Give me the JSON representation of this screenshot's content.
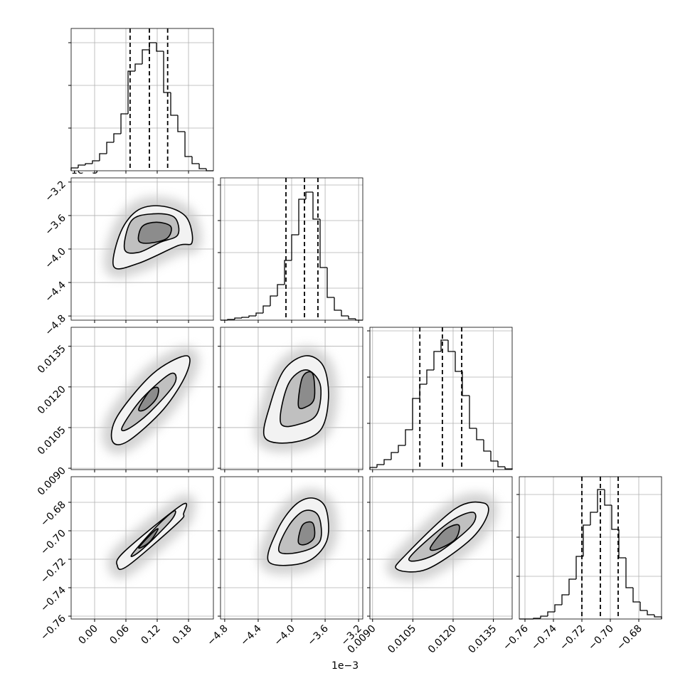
{
  "axes": [
    {
      "xlim": [
        -0.045,
        0.2277
      ],
      "ticks": [
        {
          "value": 0,
          "label": "0.00"
        },
        0.06,
        0.12,
        0.18
      ]
    },
    {
      "xlim": [
        -4.85,
        -3.15
      ],
      "ylim": [
        -4.85,
        -3.15
      ],
      "ticks": [
        {
          "value": -4.8,
          "label": "−4.8"
        },
        {
          "value": -4.4,
          "label": "−4.4"
        },
        {
          "value": -4.0,
          "label": "−4.0"
        },
        {
          "value": -3.6,
          "label": "−3.6"
        },
        {
          "value": -3.2,
          "label": "−3.2"
        }
      ],
      "offset": "1e−3"
    },
    {
      "xlim": [
        0.0089,
        0.0142
      ],
      "ylim": [
        0.00895,
        0.0142
      ],
      "ticks": [
        {
          "value": 0.009,
          "label": "0.0090"
        },
        0.0105,
        {
          "value": 0.012,
          "label": "0.0120"
        },
        0.0135
      ]
    },
    {
      "xlim": [
        -0.764,
        -0.664
      ],
      "ylim": [
        -0.762,
        -0.662
      ],
      "ticks": [
        {
          "value": -0.76,
          "label": "−0.76"
        },
        {
          "value": -0.74,
          "label": "−0.74"
        },
        {
          "value": -0.72,
          "label": "−0.72"
        },
        {
          "value": -0.7,
          "label": "−0.70"
        },
        {
          "value": -0.68,
          "label": "−0.68"
        }
      ]
    }
  ],
  "chart_data": [
    {
      "type": "histogram",
      "color": "#000000",
      "ylim": [
        0,
        200
      ],
      "yticks": [
        60,
        120,
        180
      ],
      "bins": [
        -0.045,
        -0.0314,
        -0.0177,
        -0.0041,
        0.0095,
        0.0232,
        0.0368,
        0.0505,
        0.0641,
        0.0777,
        0.0914,
        0.105,
        0.1186,
        0.1323,
        0.1459,
        0.1595,
        0.1732,
        0.1868,
        0.2005,
        0.2141,
        0.2277
      ],
      "counts": [
        4,
        8,
        10,
        14,
        24,
        40,
        52,
        80,
        140,
        150,
        170,
        180,
        168,
        110,
        78,
        55,
        20,
        10,
        3,
        0
      ],
      "quantiles": [
        0.068,
        0.105,
        0.14
      ]
    },
    {
      "type": "contour",
      "fills": [
        "#f2f2f2",
        "#c0c0c0",
        "#8c8c8c"
      ],
      "contours": [
        {
          "x": [
            0.0368,
            0.0505,
            0.0845,
            0.1323,
            0.1759,
            0.1868,
            0.1595,
            0.0845
          ],
          "y": [
            -4.21,
            -3.79,
            -3.53,
            -3.49,
            -3.62,
            -3.92,
            -3.96,
            -4.17
          ]
        },
        {
          "x": [
            0.0573,
            0.0709,
            0.1118,
            0.1527,
            0.1595,
            0.1255,
            0.0845
          ],
          "y": [
            -4.0,
            -3.66,
            -3.58,
            -3.62,
            -3.83,
            -3.92,
            -4.04
          ]
        },
        {
          "x": [
            0.0845,
            0.0914,
            0.1186,
            0.1459,
            0.1391,
            0.105
          ],
          "y": [
            -3.9,
            -3.73,
            -3.68,
            -3.73,
            -3.87,
            -3.93
          ]
        }
      ]
    },
    {
      "type": "histogram",
      "color": "#000000",
      "ylim": [
        0,
        200
      ],
      "yticks": [
        45,
        95,
        140,
        190
      ],
      "bins": [
        -4.85,
        -4.765,
        -4.68,
        -4.595,
        -4.51,
        -4.425,
        -4.34,
        -4.255,
        -4.17,
        -4.085,
        -4.0,
        -3.915,
        -3.83,
        -3.745,
        -3.66,
        -3.575,
        -3.49,
        -3.405,
        -3.32,
        -3.235,
        -3.15
      ],
      "counts": [
        0,
        1,
        3,
        4,
        6,
        10,
        20,
        34,
        50,
        84,
        120,
        170,
        180,
        142,
        74,
        32,
        14,
        6,
        2,
        0
      ],
      "quantiles": [
        -4.068,
        -3.847,
        -3.686
      ]
    },
    {
      "type": "contour",
      "fills": [
        "#f2f2f2",
        "#c0c0c0",
        "#8c8c8c"
      ],
      "contours": [
        {
          "x": [
            0.0341,
            0.0436,
            0.1118,
            0.1759,
            0.1759,
            0.1323,
            0.0641
          ],
          "y": [
            0.01,
            0.01092,
            0.01249,
            0.01315,
            0.01249,
            0.01118,
            0.01
          ]
        },
        {
          "x": [
            0.0532,
            0.0914,
            0.1459,
            0.1527,
            0.105,
            0.0641
          ],
          "y": [
            0.01053,
            0.01158,
            0.01249,
            0.0121,
            0.01105,
            0.01045
          ]
        },
        {
          "x": [
            0.0845,
            0.105,
            0.1214,
            0.1186,
            0.0982
          ],
          "y": [
            0.01118,
            0.01184,
            0.01197,
            0.01158,
            0.01118
          ]
        }
      ]
    },
    {
      "type": "contour",
      "fills": [
        "#f2f2f2",
        "#c0c0c0",
        "#8c8c8c"
      ],
      "contours": [
        {
          "x": [
            -4.32,
            -4.26,
            -4.09,
            -3.83,
            -3.62,
            -3.56,
            -3.66,
            -4.0
          ],
          "y": [
            0.01013,
            0.01131,
            0.01263,
            0.01315,
            0.01276,
            0.01158,
            0.01039,
            0.00995
          ]
        },
        {
          "x": [
            -4.13,
            -4.04,
            -3.83,
            -3.66,
            -3.69,
            -3.87
          ],
          "y": [
            0.01066,
            0.0121,
            0.01263,
            0.0121,
            0.01105,
            0.01066
          ]
        },
        {
          "x": [
            -3.92,
            -3.87,
            -3.75,
            -3.73,
            -3.83
          ],
          "y": [
            0.01131,
            0.01236,
            0.01249,
            0.01158,
            0.01126
          ]
        }
      ]
    },
    {
      "type": "histogram",
      "color": "#000000",
      "ylim": [
        0,
        200
      ],
      "yticks": [
        65,
        130,
        195
      ],
      "bins": [
        0.0089,
        0.009165,
        0.00943,
        0.009695,
        0.00996,
        0.010225,
        0.01049,
        0.010755,
        0.01102,
        0.011285,
        0.01155,
        0.011815,
        0.01208,
        0.012345,
        0.01261,
        0.012875,
        0.01314,
        0.013405,
        0.01367,
        0.013935,
        0.0142
      ],
      "counts": [
        3,
        7,
        14,
        24,
        34,
        56,
        100,
        120,
        140,
        166,
        182,
        166,
        138,
        104,
        58,
        42,
        26,
        12,
        4,
        1
      ],
      "quantiles": [
        0.01076,
        0.0116,
        0.01232
      ]
    },
    {
      "type": "contour",
      "fills": [
        "#f2f2f2",
        "#c0c0c0",
        "#8c8c8c"
      ],
      "contours": [
        {
          "x": [
            0.0436,
            0.0573,
            0.1664,
            0.1705,
            0.1595,
            0.0641
          ],
          "y": [
            -0.7245,
            -0.7145,
            -0.682,
            -0.688,
            -0.6945,
            -0.7245
          ]
        },
        {
          "x": [
            0.0709,
            0.1186,
            0.1527,
            0.1459,
            0.0914
          ],
          "y": [
            -0.717,
            -0.697,
            -0.686,
            -0.693,
            -0.713
          ]
        },
        {
          "x": [
            0.0845,
            0.1118,
            0.1214,
            0.105
          ],
          "y": [
            -0.712,
            -0.701,
            -0.699,
            -0.708
          ]
        }
      ]
    },
    {
      "type": "contour",
      "fills": [
        "#f2f2f2",
        "#c0c0c0",
        "#8c8c8c"
      ],
      "contours": [
        {
          "x": [
            -4.27,
            -4.17,
            -3.96,
            -3.75,
            -3.59,
            -3.58,
            -3.83
          ],
          "y": [
            -0.722,
            -0.6995,
            -0.682,
            -0.677,
            -0.6845,
            -0.707,
            -0.722
          ]
        },
        {
          "x": [
            -4.15,
            -4.04,
            -3.85,
            -3.68,
            -3.66,
            -3.87
          ],
          "y": [
            -0.7145,
            -0.697,
            -0.686,
            -0.6895,
            -0.707,
            -0.7145
          ]
        },
        {
          "x": [
            -3.92,
            -3.87,
            -3.75,
            -3.73,
            -3.83
          ],
          "y": [
            -0.708,
            -0.696,
            -0.6945,
            -0.7045,
            -0.7095
          ]
        }
      ]
    },
    {
      "type": "contour",
      "fills": [
        "#f2f2f2",
        "#c0c0c0",
        "#8c8c8c"
      ],
      "contours": [
        {
          "x": [
            0.00991,
            0.01023,
            0.01208,
            0.01314,
            0.01327,
            0.0126,
            0.01102
          ],
          "y": [
            -0.727,
            -0.717,
            -0.6845,
            -0.6805,
            -0.6895,
            -0.707,
            -0.727
          ]
        },
        {
          "x": [
            0.01036,
            0.01182,
            0.01274,
            0.01266,
            0.01129
          ],
          "y": [
            -0.7195,
            -0.6945,
            -0.687,
            -0.697,
            -0.717
          ]
        },
        {
          "x": [
            0.01115,
            0.01168,
            0.01221,
            0.01208,
            0.01142
          ],
          "y": [
            -0.712,
            -0.6995,
            -0.696,
            -0.706,
            -0.713
          ]
        }
      ]
    },
    {
      "type": "histogram",
      "color": "#000000",
      "ylim": [
        0,
        200
      ],
      "yticks": [
        60,
        115,
        175
      ],
      "bins": [
        -0.764,
        -0.759,
        -0.754,
        -0.749,
        -0.744,
        -0.739,
        -0.734,
        -0.729,
        -0.724,
        -0.719,
        -0.714,
        -0.709,
        -0.704,
        -0.699,
        -0.694,
        -0.689,
        -0.684,
        -0.679,
        -0.674,
        -0.669,
        -0.664
      ],
      "counts": [
        0,
        0,
        1,
        4,
        10,
        20,
        34,
        56,
        88,
        132,
        150,
        182,
        160,
        126,
        86,
        44,
        24,
        12,
        6,
        3
      ],
      "quantiles": [
        -0.72,
        -0.707,
        -0.6945
      ]
    }
  ]
}
